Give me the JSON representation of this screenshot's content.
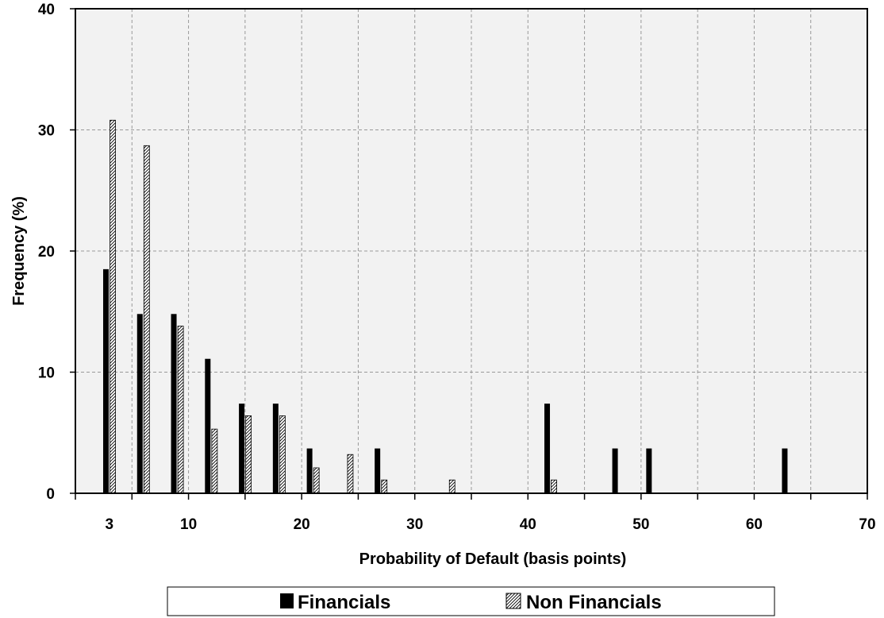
{
  "chart_data": {
    "type": "bar",
    "xlabel": "Probability of Default (basis points)",
    "ylabel": "Frequency (%)",
    "xlim": [
      0,
      70
    ],
    "ylim": [
      0,
      40
    ],
    "x_ticks": [
      3,
      10,
      20,
      30,
      40,
      50,
      60,
      70
    ],
    "y_ticks": [
      0,
      10,
      20,
      30,
      40
    ],
    "grid": true,
    "legend_position": "bottom",
    "series": [
      {
        "name": "Financials",
        "fill": "solid",
        "color": "#000000",
        "points": [
          {
            "x": 2.7,
            "y": 18.5
          },
          {
            "x": 5.7,
            "y": 14.8
          },
          {
            "x": 8.7,
            "y": 14.8
          },
          {
            "x": 11.7,
            "y": 11.1
          },
          {
            "x": 14.7,
            "y": 7.4
          },
          {
            "x": 17.7,
            "y": 7.4
          },
          {
            "x": 20.7,
            "y": 3.7
          },
          {
            "x": 26.7,
            "y": 3.7
          },
          {
            "x": 41.7,
            "y": 7.4
          },
          {
            "x": 47.7,
            "y": 3.7
          },
          {
            "x": 50.7,
            "y": 3.7
          },
          {
            "x": 62.7,
            "y": 3.7
          }
        ]
      },
      {
        "name": "Non Financials",
        "fill": "hatched",
        "color": "#000000",
        "points": [
          {
            "x": 3.3,
            "y": 30.8
          },
          {
            "x": 6.3,
            "y": 28.7
          },
          {
            "x": 9.3,
            "y": 13.8
          },
          {
            "x": 12.3,
            "y": 5.3
          },
          {
            "x": 15.3,
            "y": 6.4
          },
          {
            "x": 18.3,
            "y": 6.4
          },
          {
            "x": 21.3,
            "y": 2.1
          },
          {
            "x": 24.3,
            "y": 3.2
          },
          {
            "x": 27.3,
            "y": 1.1
          },
          {
            "x": 33.3,
            "y": 1.1
          },
          {
            "x": 42.3,
            "y": 1.1
          }
        ]
      }
    ]
  }
}
